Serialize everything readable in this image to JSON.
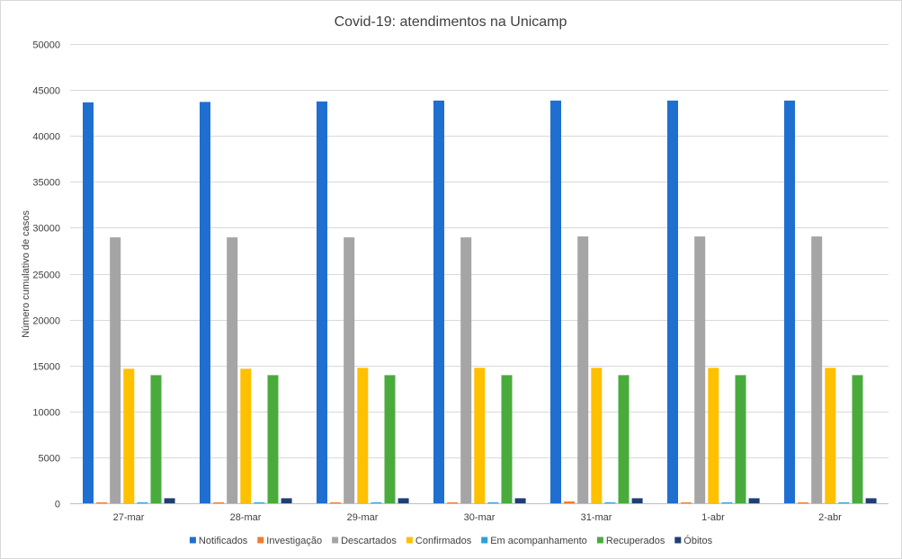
{
  "chart_data": {
    "type": "bar",
    "title": "Covid-19: atendimentos na Unicamp",
    "xlabel": "",
    "ylabel": "Número cumulativo de casos",
    "ylim": [
      0,
      50000
    ],
    "yticks": [
      0,
      5000,
      10000,
      15000,
      20000,
      25000,
      30000,
      35000,
      40000,
      45000,
      50000
    ],
    "grid": true,
    "legend_position": "bottom",
    "categories": [
      "27-mar",
      "28-mar",
      "29-mar",
      "30-mar",
      "31-mar",
      "1-abr",
      "2-abr"
    ],
    "series": [
      {
        "name": "Notificados",
        "color": "#1f6fd0",
        "values": [
          43650,
          43700,
          43750,
          43850,
          43850,
          43850,
          43850
        ]
      },
      {
        "name": "Investigação",
        "color": "#ed7d31",
        "values": [
          100,
          100,
          100,
          100,
          200,
          100,
          100
        ]
      },
      {
        "name": "Descartados",
        "color": "#a5a5a5",
        "values": [
          28950,
          28950,
          28950,
          28950,
          29050,
          29050,
          29050
        ]
      },
      {
        "name": "Confirmados",
        "color": "#ffc000",
        "values": [
          14650,
          14650,
          14750,
          14750,
          14750,
          14750,
          14750
        ]
      },
      {
        "name": "Em acompanhamento",
        "color": "#2e9fd8",
        "values": [
          100,
          100,
          100,
          100,
          100,
          100,
          100
        ]
      },
      {
        "name": "Recuperados",
        "color": "#4aab3d",
        "values": [
          13950,
          13950,
          13950,
          13950,
          13950,
          13950,
          13950
        ]
      },
      {
        "name": "Óbitos",
        "color": "#1f3f73",
        "values": [
          550,
          550,
          550,
          550,
          550,
          550,
          550
        ]
      }
    ]
  }
}
